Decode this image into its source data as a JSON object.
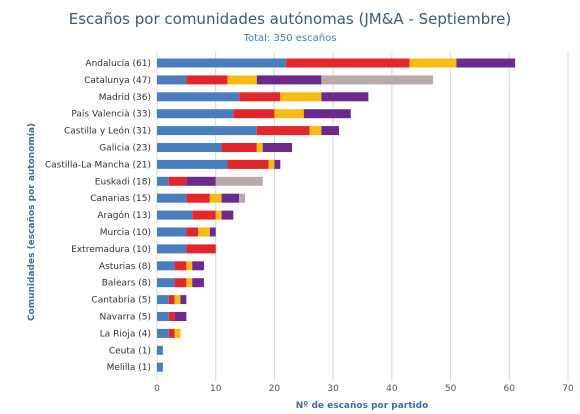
{
  "chart_data": {
    "type": "bar",
    "orientation": "horizontal",
    "stacked": true,
    "title": "Escaños por comunidades autónomas (JM&A - Septiembre)",
    "subtitle": "Total: 350 escaños",
    "xlabel": "Nº de escaños por partido",
    "ylabel": "Comunidades (escaños por autonomía)",
    "xlim": [
      0,
      70
    ],
    "xticks": [
      0,
      10,
      20,
      30,
      40,
      50,
      60,
      70
    ],
    "grid": true,
    "categories": [
      "Andalucía (61)",
      "Catalunya (47)",
      "Madrid (36)",
      "País Valencià (33)",
      "Castilla y León (31)",
      "Galicia (23)",
      "Castilla-La Mancha (21)",
      "Euskadi (18)",
      "Canarias (15)",
      "Aragón (13)",
      "Murcia (10)",
      "Extremadura (10)",
      "Asturias (8)",
      "Balears (8)",
      "Cantabria (5)",
      "Navarra (5)",
      "La Rioja (4)",
      "Ceuta (1)",
      "Melilla (1)"
    ],
    "series": [
      {
        "color": "#4a7dbf",
        "values": [
          22,
          5,
          14,
          13,
          17,
          11,
          12,
          2,
          5,
          6,
          5,
          5,
          3,
          3,
          2,
          2,
          2,
          1,
          1
        ]
      },
      {
        "color": "#e3262b",
        "values": [
          21,
          7,
          7,
          7,
          9,
          6,
          7,
          3,
          4,
          4,
          2,
          5,
          2,
          2,
          1,
          1,
          1,
          0,
          0
        ]
      },
      {
        "color": "#f7bc13",
        "values": [
          8,
          5,
          7,
          5,
          2,
          1,
          1,
          0,
          2,
          1,
          2,
          0,
          1,
          1,
          1,
          0,
          1,
          0,
          0
        ]
      },
      {
        "color": "#6c2a8c",
        "values": [
          10,
          11,
          8,
          8,
          3,
          5,
          1,
          5,
          3,
          2,
          1,
          0,
          2,
          2,
          1,
          2,
          0,
          0,
          0
        ]
      },
      {
        "color": "#b9aaaa",
        "values": [
          0,
          19,
          0,
          0,
          0,
          0,
          0,
          8,
          1,
          0,
          0,
          0,
          0,
          0,
          0,
          0,
          0,
          0,
          0
        ]
      }
    ]
  }
}
